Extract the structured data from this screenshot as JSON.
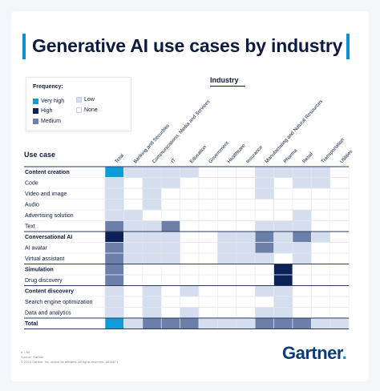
{
  "title": "Generative AI use cases by industry",
  "legend": {
    "title": "Frequency:",
    "items": [
      {
        "label": "Very high",
        "color": "#119bd8"
      },
      {
        "label": "Low",
        "color": "#d5deee"
      },
      {
        "label": "High",
        "color": "#0c2158"
      },
      {
        "label": "None",
        "color": "#ffffff"
      },
      {
        "label": "Medium",
        "color": "#6b7fa8"
      }
    ]
  },
  "column_group_label": "Industry",
  "row_group_label": "Use case",
  "footnotes": [
    "n = 60",
    "Source: Gartner",
    "© 2024 Gartner, Inc. and/or its affiliates. All rights reserved. 2815871"
  ],
  "brand": "Gartner",
  "chart_data": {
    "type": "heatmap",
    "columns": [
      "Total",
      "Banking and Securities",
      "Communications, Media and Services",
      "IT",
      "Education",
      "Government",
      "Healthcare",
      "Insurance",
      "Manufacturing and Natural Resources",
      "Pharma",
      "Retail",
      "Transportation",
      "Utilities"
    ],
    "levels": {
      "0": "None",
      "1": "Low",
      "2": "Medium",
      "3": "High",
      "4": "Very high"
    },
    "rows": [
      {
        "label": "Content creation",
        "group": true,
        "values": [
          4,
          1,
          1,
          1,
          1,
          0,
          0,
          0,
          1,
          1,
          1,
          1,
          0
        ]
      },
      {
        "label": "Code",
        "group": false,
        "values": [
          1,
          0,
          1,
          1,
          0,
          0,
          0,
          0,
          1,
          0,
          1,
          1,
          0
        ]
      },
      {
        "label": "Video and image",
        "group": false,
        "values": [
          1,
          0,
          1,
          0,
          0,
          0,
          0,
          0,
          1,
          0,
          0,
          0,
          0
        ]
      },
      {
        "label": "Audio",
        "group": false,
        "values": [
          1,
          0,
          1,
          0,
          0,
          0,
          0,
          0,
          0,
          0,
          0,
          0,
          0
        ]
      },
      {
        "label": "Advertising solution",
        "group": false,
        "values": [
          1,
          1,
          0,
          0,
          0,
          0,
          0,
          0,
          0,
          0,
          1,
          0,
          0
        ]
      },
      {
        "label": "Text",
        "group": false,
        "values": [
          2,
          1,
          1,
          2,
          0,
          0,
          0,
          0,
          1,
          1,
          1,
          0,
          0
        ]
      },
      {
        "label": "Conversational AI",
        "group": true,
        "values": [
          3,
          1,
          1,
          1,
          0,
          0,
          1,
          1,
          2,
          1,
          2,
          1,
          0
        ]
      },
      {
        "label": "AI avatar",
        "group": false,
        "values": [
          2,
          1,
          1,
          1,
          0,
          0,
          1,
          1,
          2,
          1,
          1,
          0,
          0
        ]
      },
      {
        "label": "Virtual assistant",
        "group": false,
        "values": [
          2,
          1,
          1,
          1,
          0,
          0,
          1,
          1,
          1,
          0,
          1,
          0,
          0
        ]
      },
      {
        "label": "Simulation",
        "group": true,
        "values": [
          2,
          0,
          0,
          0,
          0,
          0,
          0,
          0,
          0,
          3,
          0,
          0,
          0
        ]
      },
      {
        "label": "Drug discovery",
        "group": false,
        "values": [
          2,
          0,
          0,
          0,
          0,
          0,
          0,
          0,
          0,
          3,
          0,
          0,
          0
        ]
      },
      {
        "label": "Content discovery",
        "group": true,
        "values": [
          1,
          0,
          1,
          0,
          1,
          0,
          0,
          0,
          1,
          1,
          0,
          0,
          0
        ]
      },
      {
        "label": "Search engine optimization",
        "group": false,
        "values": [
          1,
          0,
          1,
          0,
          0,
          0,
          0,
          0,
          0,
          1,
          0,
          0,
          0
        ]
      },
      {
        "label": "Data and analytics",
        "group": false,
        "values": [
          1,
          0,
          1,
          0,
          1,
          0,
          0,
          0,
          1,
          1,
          0,
          0,
          0
        ]
      },
      {
        "label": "Total",
        "group": true,
        "values": [
          4,
          1,
          2,
          2,
          2,
          1,
          1,
          1,
          2,
          2,
          2,
          1,
          1
        ]
      }
    ]
  }
}
